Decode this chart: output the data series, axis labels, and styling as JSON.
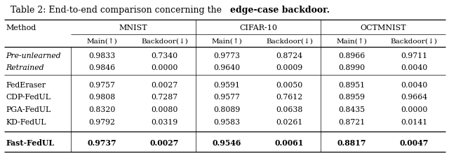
{
  "title_plain": "Table 2: End-to-end comparison concerning the ",
  "title_bold": "edge-case backdoor",
  "title_suffix": ".",
  "col_groups": [
    "MNIST",
    "CIFAR-10",
    "OCTMNIST"
  ],
  "col_sub": [
    "Main(↑)  Backdoor(↓)",
    "Main(↑)  Backdoor(↓)",
    "Main(↑)  Backdoor(↓)"
  ],
  "col_sub2": [
    "Main(↑)",
    "Backdoor(↓)"
  ],
  "methods": [
    "Pre-unlearned",
    "Retrained",
    "",
    "FedEraser",
    "CDP-FedUL",
    "PGA-FedUL",
    "KD-FedUL",
    "",
    "Fast-FedUL"
  ],
  "methods_italic": [
    true,
    true,
    false,
    false,
    false,
    false,
    false,
    false,
    false
  ],
  "methods_bold": [
    false,
    false,
    false,
    false,
    false,
    false,
    false,
    false,
    true
  ],
  "data": [
    [
      "0.9833",
      "0.7340",
      "0.9773",
      "0.8724",
      "0.8966",
      "0.9711"
    ],
    [
      "0.9846",
      "0.0000",
      "0.9640",
      "0.0009",
      "0.8990",
      "0.0040"
    ],
    [
      null,
      null,
      null,
      null,
      null,
      null
    ],
    [
      "0.9757",
      "0.0027",
      "0.9591",
      "0.0050",
      "0.8951",
      "0.0040"
    ],
    [
      "0.9808",
      "0.7287",
      "0.9577",
      "0.7612",
      "0.8959",
      "0.9664"
    ],
    [
      "0.8320",
      "0.0080",
      "0.8089",
      "0.0638",
      "0.8435",
      "0.0000"
    ],
    [
      "0.9792",
      "0.0319",
      "0.9583",
      "0.0261",
      "0.8721",
      "0.0141"
    ],
    [
      null,
      null,
      null,
      null,
      null,
      null
    ],
    [
      "0.9737",
      "0.0027",
      "0.9546",
      "0.0061",
      "0.8817",
      "0.0047"
    ]
  ],
  "bg_color": "#ffffff",
  "text_color": "#000000",
  "figsize": [
    6.4,
    2.23
  ],
  "dpi": 100
}
